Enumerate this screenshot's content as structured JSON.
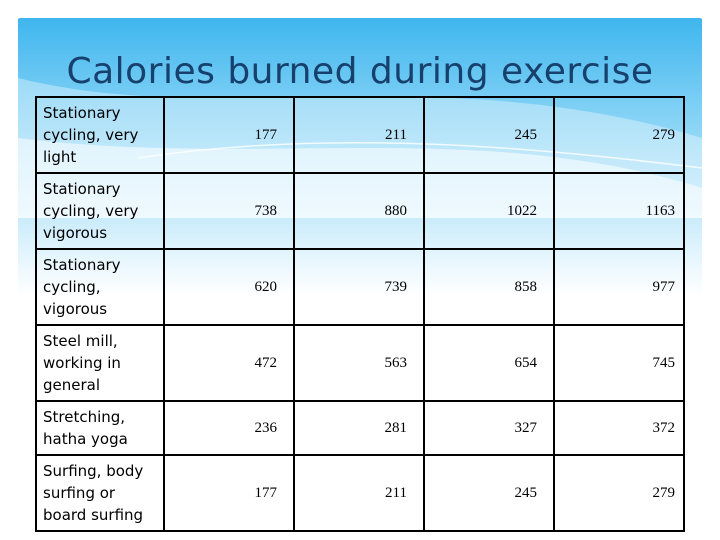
{
  "slide": {
    "title": "Calories burned during exercise"
  },
  "table": {
    "rows": [
      {
        "activity": "Stationary cycling, very light",
        "values": [
          "177",
          "211",
          "245",
          "279"
        ]
      },
      {
        "activity": "Stationary cycling, very vigorous",
        "values": [
          "738",
          "880",
          "1022",
          "1163"
        ]
      },
      {
        "activity": "Stationary cycling, vigorous",
        "values": [
          "620",
          "739",
          "858",
          "977"
        ]
      },
      {
        "activity": "Steel mill, working in general",
        "values": [
          "472",
          "563",
          "654",
          "745"
        ]
      },
      {
        "activity": "Stretching, hatha yoga",
        "values": [
          "236",
          "281",
          "327",
          "372"
        ]
      },
      {
        "activity": "Surfing, body surfing or board surfing",
        "values": [
          "177",
          "211",
          "245",
          "279"
        ]
      }
    ]
  },
  "colors": {
    "title": "#17406d",
    "background_top": "#3fb6ee",
    "grid": "#000000"
  }
}
